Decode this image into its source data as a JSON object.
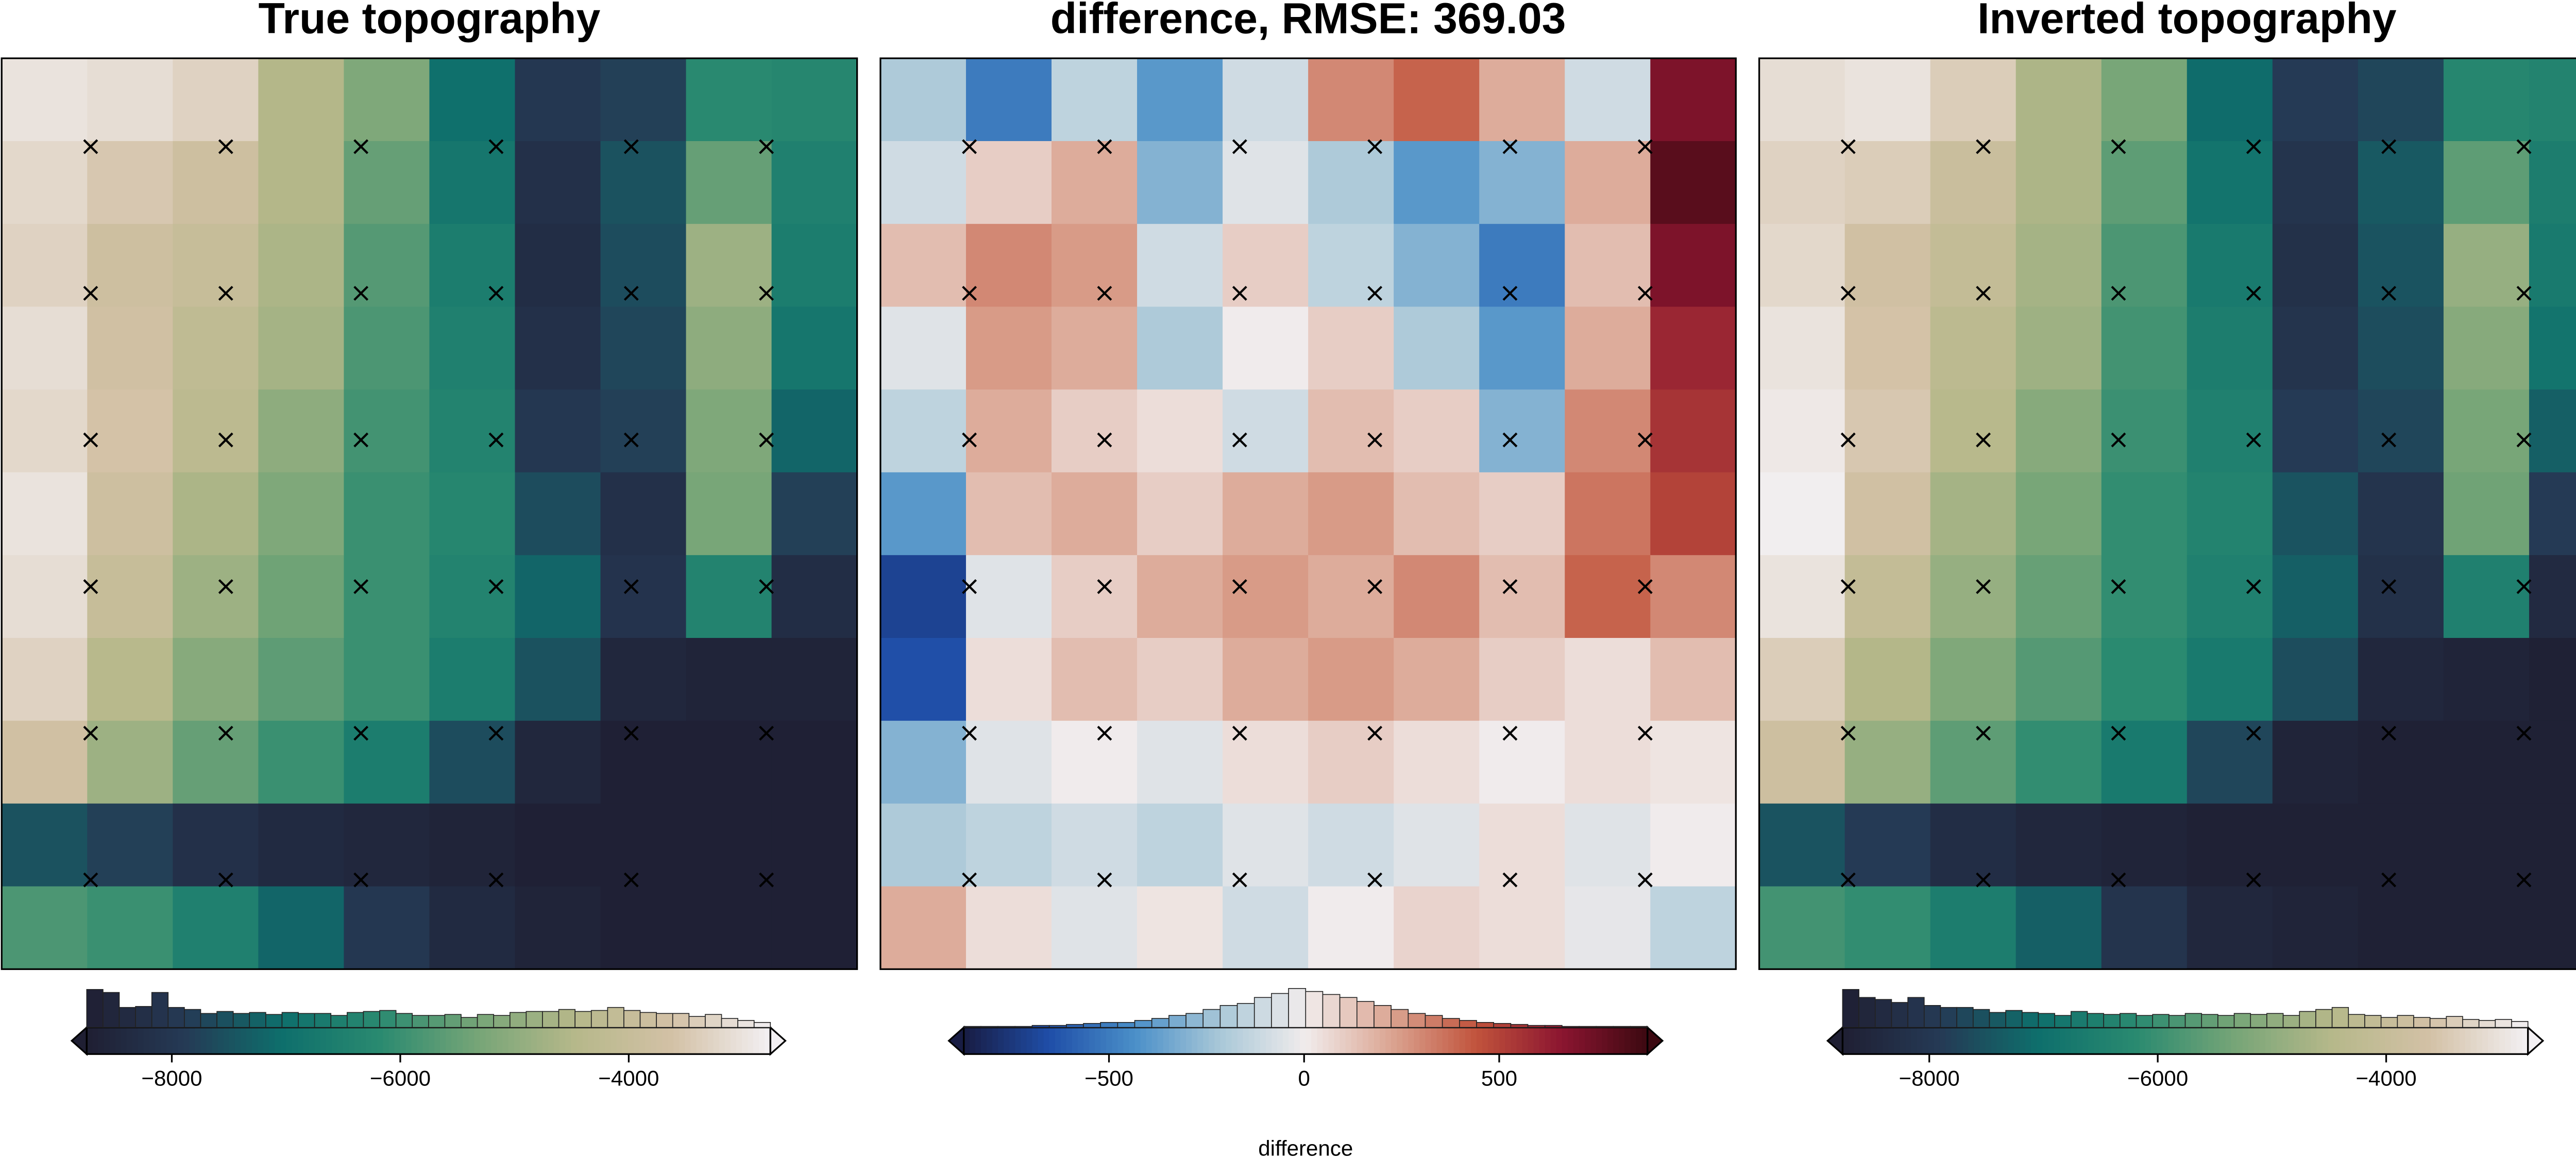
{
  "chart_data": [
    {
      "type": "heatmap",
      "title": "True topography",
      "colormap": [
        "#1f1f33",
        "#253a55",
        "#0e6f6c",
        "#2a8a70",
        "#76a577",
        "#b6b88a",
        "#d3c1a6",
        "#f3f0f3"
      ],
      "clim": [
        -8745,
        -2760
      ],
      "cticks": [
        {
          "value": -8000,
          "label": "−8000"
        },
        {
          "value": -6000,
          "label": "−6000"
        },
        {
          "value": -4000,
          "label": "−4000"
        }
      ],
      "z": [
        [
          -3000,
          -3100,
          -3300,
          -4500,
          -5200,
          -7000,
          -8000,
          -7800,
          -6200,
          -6300
        ],
        [
          -3200,
          -3500,
          -3800,
          -4500,
          -5500,
          -6800,
          -8200,
          -7500,
          -5500,
          -6500
        ],
        [
          -3300,
          -3800,
          -4000,
          -4600,
          -5700,
          -6600,
          -8300,
          -7600,
          -4800,
          -6600
        ],
        [
          -3100,
          -3700,
          -4200,
          -4700,
          -5800,
          -6500,
          -8200,
          -7700,
          -5000,
          -6800
        ],
        [
          -3200,
          -3600,
          -4300,
          -5000,
          -5900,
          -6400,
          -8000,
          -7800,
          -5200,
          -7200
        ],
        [
          -3000,
          -3800,
          -4600,
          -5200,
          -6000,
          -6300,
          -7600,
          -8200,
          -5300,
          -7800
        ],
        [
          -3100,
          -4000,
          -4800,
          -5400,
          -6000,
          -6400,
          -7200,
          -8100,
          -6400,
          -8300
        ],
        [
          -3300,
          -4400,
          -5100,
          -5600,
          -6000,
          -6600,
          -7500,
          -8500,
          -8600,
          -8600
        ],
        [
          -3700,
          -4800,
          -5500,
          -6000,
          -6600,
          -7600,
          -8500,
          -8700,
          -8700,
          -8700
        ],
        [
          -7500,
          -7800,
          -8200,
          -8400,
          -8500,
          -8600,
          -8700,
          -8700,
          -8700,
          -8700
        ],
        [
          -5800,
          -6000,
          -6500,
          -7200,
          -8000,
          -8400,
          -8600,
          -8700,
          -8700,
          -8700
        ]
      ],
      "hist_counts": [
        38,
        35,
        20,
        21,
        35,
        20,
        18,
        14,
        16,
        14,
        15,
        13,
        15,
        14,
        14,
        12,
        15,
        16,
        17,
        14,
        12,
        12,
        13,
        10,
        13,
        12,
        15,
        16,
        16,
        18,
        16,
        17,
        20,
        17,
        15,
        14,
        14,
        11,
        13,
        9,
        7,
        5
      ]
    },
    {
      "type": "heatmap",
      "title": "difference, RMSE: 369.03",
      "colormap": [
        "#181c43",
        "#1f4ea8",
        "#4a8fc8",
        "#a9c8d8",
        "#f1ecec",
        "#dba592",
        "#c1533c",
        "#8b1530",
        "#3c0911"
      ],
      "clim": [
        -872,
        880
      ],
      "cticks": [
        {
          "value": -500,
          "label": "−500"
        },
        0,
        500
      ],
      "clabel": "difference",
      "z": [
        [
          -200,
          -500,
          -150,
          -400,
          -100,
          300,
          400,
          200,
          -100,
          700
        ],
        [
          -100,
          100,
          200,
          -300,
          -50,
          -200,
          -400,
          -300,
          200,
          800
        ],
        [
          150,
          300,
          250,
          -100,
          100,
          -150,
          -300,
          -500,
          150,
          700
        ],
        [
          -50,
          250,
          200,
          -200,
          0,
          100,
          -200,
          -400,
          200,
          600
        ],
        [
          -150,
          200,
          100,
          50,
          -100,
          150,
          100,
          -300,
          300,
          550
        ],
        [
          -400,
          150,
          200,
          100,
          200,
          250,
          150,
          100,
          350,
          500
        ],
        [
          -700,
          -50,
          100,
          200,
          250,
          200,
          300,
          150,
          400,
          300
        ],
        [
          -650,
          50,
          150,
          100,
          200,
          250,
          200,
          100,
          50,
          150
        ],
        [
          -300,
          -50,
          0,
          -50,
          50,
          100,
          50,
          0,
          50,
          30
        ],
        [
          -200,
          -150,
          -100,
          -150,
          -50,
          -100,
          -50,
          50,
          -50,
          0
        ],
        [
          200,
          50,
          -50,
          30,
          -100,
          0,
          80,
          50,
          -30,
          -150
        ]
      ],
      "hist_counts": [
        1,
        1,
        1,
        1,
        2,
        2,
        3,
        4,
        5,
        5,
        7,
        9,
        12,
        14,
        18,
        22,
        24,
        30,
        34,
        39,
        36,
        33,
        30,
        26,
        22,
        18,
        14,
        12,
        9,
        7,
        5,
        4,
        3,
        2,
        2,
        1,
        1,
        1,
        1,
        1
      ]
    },
    {
      "type": "heatmap",
      "title": "Inverted topography",
      "colormap": [
        "#1f1f33",
        "#253a55",
        "#0e6f6c",
        "#2a8a70",
        "#76a577",
        "#b6b88a",
        "#d3c1a6",
        "#f3f0f3"
      ],
      "clim": [
        -8759,
        -2759
      ],
      "cticks": [
        {
          "value": -8000,
          "label": "−8000"
        },
        {
          "value": -6000,
          "label": "−6000"
        },
        {
          "value": -4000,
          "label": "−4000"
        }
      ],
      "z": [
        [
          -3100,
          -3000,
          -3400,
          -4600,
          -5300,
          -7100,
          -7900,
          -7700,
          -6300,
          -6400
        ],
        [
          -3300,
          -3400,
          -3900,
          -4600,
          -5600,
          -6900,
          -8100,
          -7400,
          -5600,
          -6600
        ],
        [
          -3200,
          -3700,
          -4100,
          -4700,
          -5800,
          -6700,
          -8200,
          -7500,
          -4900,
          -6700
        ],
        [
          -3000,
          -3600,
          -4300,
          -4800,
          -5900,
          -6600,
          -8100,
          -7600,
          -5100,
          -6900
        ],
        [
          -2900,
          -3500,
          -4400,
          -5100,
          -6000,
          -6500,
          -7900,
          -7700,
          -5300,
          -7300
        ],
        [
          -2800,
          -3700,
          -4700,
          -5300,
          -6100,
          -6400,
          -7500,
          -8100,
          -5400,
          -7900
        ],
        [
          -3000,
          -4100,
          -4900,
          -5500,
          -6100,
          -6500,
          -7300,
          -8200,
          -6500,
          -8400
        ],
        [
          -3400,
          -4500,
          -5200,
          -5700,
          -6200,
          -6700,
          -7600,
          -8500,
          -8600,
          -8700
        ],
        [
          -3800,
          -4900,
          -5600,
          -6100,
          -6700,
          -7700,
          -8600,
          -8700,
          -8700,
          -8700
        ],
        [
          -7500,
          -7900,
          -8300,
          -8500,
          -8600,
          -8700,
          -8700,
          -8700,
          -8700,
          -8700
        ],
        [
          -5900,
          -6100,
          -6600,
          -7300,
          -8100,
          -8500,
          -8600,
          -8700,
          -8700,
          -8700
        ]
      ],
      "hist_counts": [
        38,
        30,
        28,
        25,
        30,
        22,
        20,
        20,
        18,
        15,
        17,
        15,
        14,
        12,
        16,
        14,
        13,
        14,
        12,
        13,
        12,
        14,
        13,
        12,
        14,
        13,
        14,
        12,
        16,
        18,
        20,
        13,
        12,
        10,
        12,
        10,
        9,
        11,
        8,
        7,
        8,
        6
      ]
    }
  ]
}
